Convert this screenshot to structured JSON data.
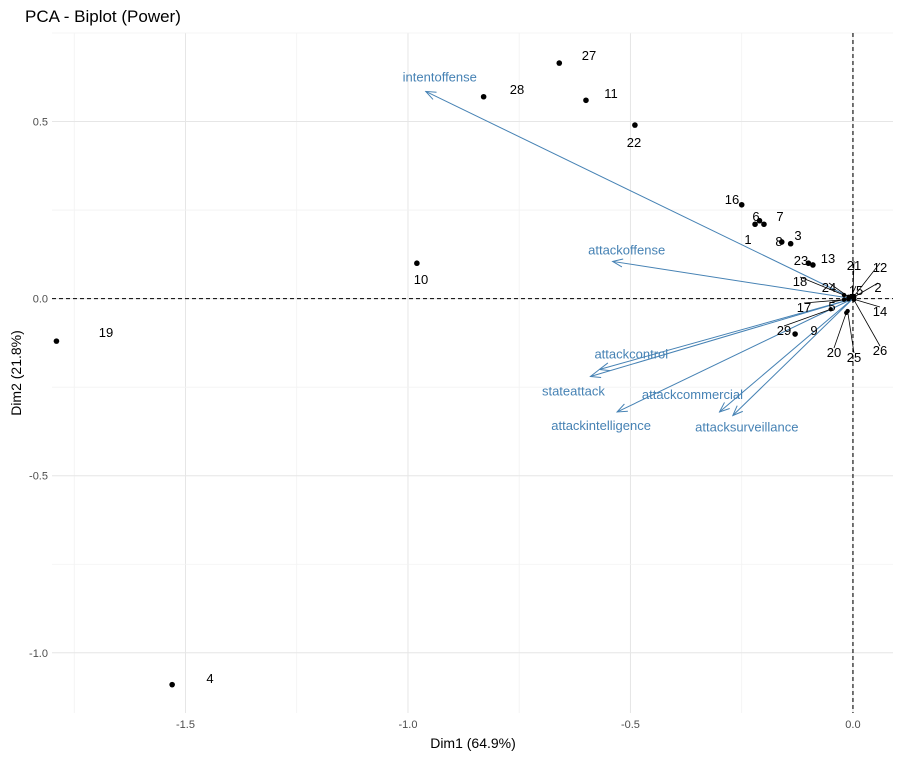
{
  "chart_data": {
    "type": "scatter",
    "title": "PCA - Biplot (Power)",
    "xlabel": "Dim1 (64.9%)",
    "ylabel": "Dim2 (21.8%)",
    "xlim": [
      -1.8,
      0.09
    ],
    "ylim": [
      -1.17,
      0.75
    ],
    "x_ticks": [
      -1.5,
      -1.0,
      -0.5,
      0.0
    ],
    "x_tick_labels": [
      "-1.5",
      "-1.0",
      "-0.5",
      "0.0"
    ],
    "y_ticks": [
      -1.0,
      -0.5,
      0.0,
      0.5
    ],
    "y_tick_labels": [
      "-1.0",
      "-0.5",
      "0.0",
      "0.5"
    ],
    "grid": true,
    "reference_lines": {
      "x": 0,
      "y": 0,
      "style": "dashed"
    },
    "arrow_color": "#4682B4",
    "points": [
      {
        "label": "1",
        "x": -0.22,
        "y": 0.21
      },
      {
        "label": "2",
        "x": 0.003,
        "y": 0.005
      },
      {
        "label": "3",
        "x": -0.14,
        "y": 0.155
      },
      {
        "label": "4",
        "x": -1.53,
        "y": -1.09
      },
      {
        "label": "5",
        "x": -0.02,
        "y": -0.003
      },
      {
        "label": "6",
        "x": -0.21,
        "y": 0.22
      },
      {
        "label": "7",
        "x": -0.2,
        "y": 0.21
      },
      {
        "label": "8",
        "x": -0.16,
        "y": 0.16
      },
      {
        "label": "9",
        "x": -0.13,
        "y": -0.1
      },
      {
        "label": "10",
        "x": -0.98,
        "y": 0.1
      },
      {
        "label": "11",
        "x": -0.6,
        "y": 0.56
      },
      {
        "label": "12",
        "x": 0.002,
        "y": 0.006
      },
      {
        "label": "13",
        "x": -0.09,
        "y": 0.095
      },
      {
        "label": "14",
        "x": 0.003,
        "y": -0.002
      },
      {
        "label": "15",
        "x": -0.005,
        "y": 0.004
      },
      {
        "label": "16",
        "x": -0.25,
        "y": 0.265
      },
      {
        "label": "17",
        "x": -0.01,
        "y": -0.002
      },
      {
        "label": "18",
        "x": -0.02,
        "y": 0.01
      },
      {
        "label": "19",
        "x": -1.79,
        "y": -0.12
      },
      {
        "label": "20",
        "x": -0.015,
        "y": -0.04
      },
      {
        "label": "21",
        "x": 0.0,
        "y": 0.006
      },
      {
        "label": "22",
        "x": -0.49,
        "y": 0.49
      },
      {
        "label": "23",
        "x": -0.1,
        "y": 0.1
      },
      {
        "label": "24",
        "x": -0.01,
        "y": 0.005
      },
      {
        "label": "25",
        "x": -0.012,
        "y": -0.035
      },
      {
        "label": "26",
        "x": 0.002,
        "y": -0.003
      },
      {
        "label": "27",
        "x": -0.66,
        "y": 0.665
      },
      {
        "label": "28",
        "x": -0.83,
        "y": 0.57
      },
      {
        "label": "29",
        "x": -0.05,
        "y": -0.03
      }
    ],
    "variables": [
      {
        "name": "intentoffense",
        "x": -0.96,
        "y": 0.585
      },
      {
        "name": "attackoffense",
        "x": -0.54,
        "y": 0.105
      },
      {
        "name": "attackcontrol",
        "x": -0.57,
        "y": -0.2
      },
      {
        "name": "stateattack",
        "x": -0.59,
        "y": -0.22
      },
      {
        "name": "attackintelligence",
        "x": -0.53,
        "y": -0.32
      },
      {
        "name": "attackcommercial",
        "x": -0.3,
        "y": -0.32
      },
      {
        "name": "attacksurveillance",
        "x": -0.27,
        "y": -0.33
      }
    ]
  }
}
